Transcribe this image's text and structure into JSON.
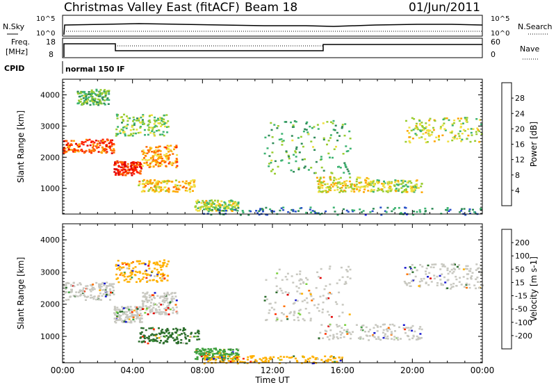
{
  "header": {
    "title": "Christmas Valley East (fitACF)",
    "beam": "Beam 18",
    "date": "01/Jun/2011"
  },
  "strip": {
    "nsky_label": "N.Sky",
    "nsearch_label": "N.Search",
    "nsky_ticks": [
      "10^5",
      "10^0"
    ],
    "nsearch_ticks": [
      "10^5",
      "10^0"
    ],
    "freq_label": "Freq.",
    "freq_unit": "[MHz]",
    "freq_ticks": [
      "18",
      "8"
    ],
    "nave_label": "Nave",
    "nave_ticks": [
      "60",
      "0"
    ],
    "cpid_label": "CPID",
    "cpid_value": "normal 150 IF"
  },
  "xaxis": {
    "label": "Time UT",
    "ticks": [
      "00:00",
      "04:00",
      "08:00",
      "12:00",
      "16:00",
      "20:00",
      "00:00"
    ]
  },
  "chart_data": [
    {
      "type": "heatmap",
      "name": "power-panel",
      "ylabel": "Slant Range [km]",
      "xlabel": "Time UT",
      "xlim": [
        0,
        24
      ],
      "ylim": [
        180,
        4500
      ],
      "yticks": [
        1000,
        2000,
        3000,
        4000
      ],
      "colorbar": {
        "label": "Power [dB]",
        "ticks": [
          "28",
          "24",
          "20",
          "16",
          "12",
          "8",
          "4"
        ],
        "colors": [
          "#1a1aff",
          "#2850c8",
          "#2e8b57",
          "#3cb371",
          "#9acd32",
          "#f0e040",
          "#ffa500",
          "#ff6a00",
          "#ff2000",
          "#e00000"
        ]
      },
      "bands": [
        {
          "t0": 0.0,
          "t1": 2.9,
          "r0": 2150,
          "r1": 2600,
          "power": 24
        },
        {
          "t0": 2.9,
          "t1": 4.5,
          "r0": 1450,
          "r1": 1900,
          "power": 26
        },
        {
          "t0": 4.5,
          "t1": 6.5,
          "r0": 1700,
          "r1": 2400,
          "power": 20
        },
        {
          "t0": 3.0,
          "t1": 6.0,
          "r0": 2700,
          "r1": 3400,
          "power": 12
        },
        {
          "t0": 0.8,
          "t1": 2.6,
          "r0": 3700,
          "r1": 4200,
          "power": 10
        },
        {
          "t0": 4.3,
          "t1": 7.5,
          "r0": 900,
          "r1": 1300,
          "power": 18
        },
        {
          "t0": 7.5,
          "t1": 10.0,
          "r0": 300,
          "r1": 650,
          "power": 14
        },
        {
          "t0": 11.5,
          "t1": 16.5,
          "r0": 1500,
          "r1": 3200,
          "power": 10
        },
        {
          "t0": 14.5,
          "t1": 17.5,
          "r0": 900,
          "r1": 1400,
          "power": 16
        },
        {
          "t0": 17.5,
          "t1": 20.5,
          "r0": 900,
          "r1": 1300,
          "power": 14
        },
        {
          "t0": 19.5,
          "t1": 24.0,
          "r0": 2500,
          "r1": 3300,
          "power": 14
        },
        {
          "t0": 8.0,
          "t1": 24.0,
          "r0": 180,
          "r1": 420,
          "power": 6
        }
      ]
    },
    {
      "type": "heatmap",
      "name": "velocity-panel",
      "ylabel": "Slant Range [km]",
      "xlabel": "Time UT",
      "xlim": [
        0,
        24
      ],
      "ylim": [
        180,
        4500
      ],
      "yticks": [
        1000,
        2000,
        3000,
        4000
      ],
      "colorbar": {
        "label": "Velocity [m s-1]",
        "ticks": [
          "200",
          "100",
          "50",
          "15",
          "-15",
          "-50",
          "-100",
          "-200"
        ],
        "colors": [
          "#1a1ad0",
          "#2c6e2c",
          "#3fa03f",
          "#7cd040",
          "#c8c8c0",
          "#ffb000",
          "#ff7000",
          "#ff3000",
          "#e00000"
        ]
      },
      "bands": [
        {
          "t0": 0.0,
          "t1": 2.9,
          "r0": 2150,
          "r1": 2700,
          "vel": 0
        },
        {
          "t0": 2.9,
          "t1": 4.5,
          "r0": 1450,
          "r1": 1950,
          "vel": 0
        },
        {
          "t0": 4.5,
          "t1": 6.5,
          "r0": 1700,
          "r1": 2400,
          "vel": 0
        },
        {
          "t0": 3.0,
          "t1": 6.0,
          "r0": 2700,
          "r1": 3400,
          "vel": -40
        },
        {
          "t0": 4.3,
          "t1": 7.8,
          "r0": 800,
          "r1": 1300,
          "vel": 90
        },
        {
          "t0": 7.5,
          "t1": 10.0,
          "r0": 300,
          "r1": 650,
          "vel": 60
        },
        {
          "t0": 11.5,
          "t1": 16.5,
          "r0": 1500,
          "r1": 3200,
          "vel": 0
        },
        {
          "t0": 14.5,
          "t1": 20.5,
          "r0": 900,
          "r1": 1400,
          "vel": 0
        },
        {
          "t0": 19.5,
          "t1": 24.0,
          "r0": 2500,
          "r1": 3300,
          "vel": 0
        },
        {
          "t0": 8.0,
          "t1": 16.0,
          "r0": 180,
          "r1": 420,
          "vel": -45
        }
      ]
    }
  ]
}
